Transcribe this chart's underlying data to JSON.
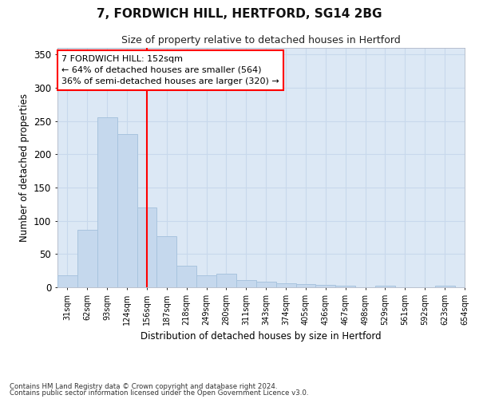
{
  "title": "7, FORDWICH HILL, HERTFORD, SG14 2BG",
  "subtitle": "Size of property relative to detached houses in Hertford",
  "xlabel": "Distribution of detached houses by size in Hertford",
  "ylabel": "Number of detached properties",
  "footnote1": "Contains HM Land Registry data © Crown copyright and database right 2024.",
  "footnote2": "Contains public sector information licensed under the Open Government Licence v3.0.",
  "annotation_line1": "7 FORDWICH HILL: 152sqm",
  "annotation_line2": "← 64% of detached houses are smaller (564)",
  "annotation_line3": "36% of semi-detached houses are larger (320) →",
  "bar_values": [
    18,
    87,
    256,
    230,
    120,
    77,
    32,
    18,
    20,
    11,
    8,
    6,
    5,
    4,
    2,
    0,
    3,
    0,
    0,
    3
  ],
  "tick_labels": [
    "31sqm",
    "62sqm",
    "93sqm",
    "124sqm",
    "156sqm",
    "187sqm",
    "218sqm",
    "249sqm",
    "280sqm",
    "311sqm",
    "343sqm",
    "374sqm",
    "405sqm",
    "436sqm",
    "467sqm",
    "498sqm",
    "529sqm",
    "561sqm",
    "592sqm",
    "623sqm",
    "654sqm"
  ],
  "bar_color": "#c5d8ed",
  "bar_edge_color": "#a8c4de",
  "grid_color": "#c8d8ec",
  "plot_bg_color": "#dce8f5",
  "fig_bg_color": "#ffffff",
  "red_line_index": 4,
  "ylim": [
    0,
    360
  ],
  "yticks": [
    0,
    50,
    100,
    150,
    200,
    250,
    300,
    350
  ]
}
